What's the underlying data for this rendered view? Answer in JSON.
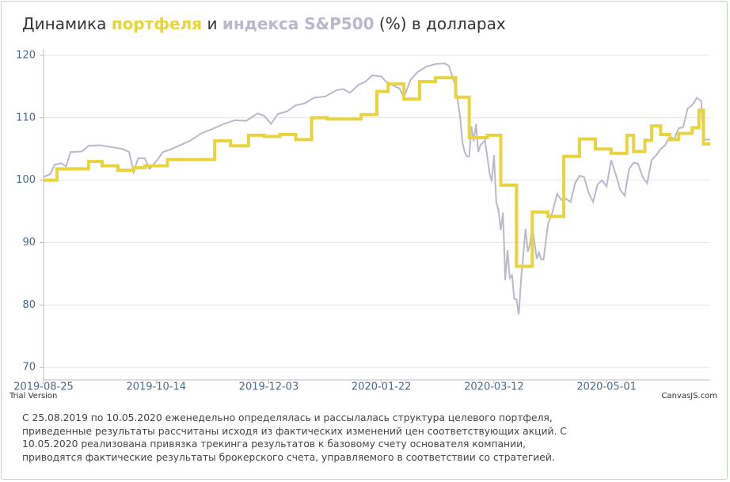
{
  "chart_data": {
    "type": "line",
    "title_start": "Динамика",
    "title_middle": "и",
    "title_end": "(%) в долларах",
    "watermark": "Trial Version",
    "credit": "CanvasJS.com",
    "xlim": [
      "2019-08-25",
      "2020-06-16"
    ],
    "xticks": [
      "2019-08-25",
      "2019-10-14",
      "2019-12-03",
      "2020-01-22",
      "2020-03-12",
      "2020-05-01"
    ],
    "ylim": [
      68,
      121
    ],
    "yticks": [
      70,
      80,
      90,
      100,
      110,
      120
    ],
    "grid": true,
    "series": [
      {
        "name": "индекса S&P500",
        "color": "#bab8ca",
        "step": false,
        "x": [
          "2019-08-25",
          "2019-08-28",
          "2019-08-30",
          "2019-09-02",
          "2019-09-04",
          "2019-09-06",
          "2019-09-11",
          "2019-09-14",
          "2019-09-19",
          "2019-09-24",
          "2019-09-29",
          "2019-10-02",
          "2019-10-04",
          "2019-10-06",
          "2019-10-09",
          "2019-10-11",
          "2019-10-14",
          "2019-10-17",
          "2019-10-21",
          "2019-10-24",
          "2019-10-29",
          "2019-11-03",
          "2019-11-08",
          "2019-11-13",
          "2019-11-18",
          "2019-11-23",
          "2019-11-28",
          "2019-12-01",
          "2019-12-04",
          "2019-12-07",
          "2019-12-11",
          "2019-12-15",
          "2019-12-19",
          "2019-12-23",
          "2019-12-28",
          "2020-01-02",
          "2020-01-05",
          "2020-01-08",
          "2020-01-12",
          "2020-01-15",
          "2020-01-18",
          "2020-01-22",
          "2020-01-24",
          "2020-01-27",
          "2020-01-30",
          "2020-02-01",
          "2020-02-04",
          "2020-02-07",
          "2020-02-11",
          "2020-02-15",
          "2020-02-19",
          "2020-02-21",
          "2020-02-24",
          "2020-02-26",
          "2020-02-27",
          "2020-02-28",
          "2020-02-29",
          "2020-03-01",
          "2020-03-02",
          "2020-03-03",
          "2020-03-04",
          "2020-03-05",
          "2020-03-06",
          "2020-03-08",
          "2020-03-10",
          "2020-03-11",
          "2020-03-12",
          "2020-03-13",
          "2020-03-14",
          "2020-03-15",
          "2020-03-16",
          "2020-03-17",
          "2020-03-18",
          "2020-03-19",
          "2020-03-20",
          "2020-03-21",
          "2020-03-22",
          "2020-03-23",
          "2020-03-24",
          "2020-03-25",
          "2020-03-26",
          "2020-03-27",
          "2020-03-28",
          "2020-03-29",
          "2020-03-30",
          "2020-03-31",
          "2020-04-01",
          "2020-04-02",
          "2020-04-03",
          "2020-04-05",
          "2020-04-07",
          "2020-04-09",
          "2020-04-11",
          "2020-04-13",
          "2020-04-15",
          "2020-04-17",
          "2020-04-19",
          "2020-04-21",
          "2020-04-23",
          "2020-04-25",
          "2020-04-27",
          "2020-04-29",
          "2020-05-01",
          "2020-05-03",
          "2020-05-05",
          "2020-05-07",
          "2020-05-09",
          "2020-05-11",
          "2020-05-13",
          "2020-05-15",
          "2020-05-17",
          "2020-05-19",
          "2020-05-21",
          "2020-05-23",
          "2020-05-25",
          "2020-05-27",
          "2020-05-29",
          "2020-05-31",
          "2020-06-02",
          "2020-06-04",
          "2020-06-06",
          "2020-06-08",
          "2020-06-10",
          "2020-06-12",
          "2020-06-13",
          "2020-06-16"
        ],
        "values": [
          100.5,
          101,
          102.5,
          102.7,
          102.2,
          104.5,
          104.6,
          105.5,
          105.6,
          105.3,
          105,
          104.5,
          101.3,
          103.5,
          103.5,
          101.8,
          103,
          104.5,
          105,
          105.5,
          106.3,
          107.5,
          108.2,
          109,
          109.6,
          109.5,
          110.7,
          110.3,
          109,
          110.6,
          111,
          112,
          112.3,
          113.2,
          113.4,
          114.4,
          114.6,
          114,
          115.3,
          115.8,
          116.8,
          116.6,
          115.8,
          115.2,
          114.7,
          113.3,
          116.1,
          117.3,
          118.2,
          118.6,
          118.7,
          118.3,
          115,
          110,
          106,
          104.5,
          103.8,
          103.8,
          108.6,
          106.2,
          109,
          104.5,
          105.6,
          106.4,
          101.2,
          99.8,
          104,
          96.5,
          95.2,
          92,
          94.8,
          84,
          88.8,
          84.3,
          84.8,
          81,
          80.9,
          78.5,
          84,
          88,
          92.2,
          88.5,
          89.8,
          92.5,
          90,
          87.4,
          88.4,
          87.3,
          87.3,
          93,
          94.9,
          97.8,
          96.8,
          97,
          96.5,
          99.5,
          100.7,
          100.5,
          98,
          96.5,
          99.3,
          100,
          99,
          103.2,
          101,
          98.5,
          97.5,
          101.8,
          102.8,
          102.6,
          100.5,
          99.5,
          103.2,
          104,
          105,
          105.6,
          107,
          106.6,
          108.3,
          108.5,
          111.5,
          112,
          113.2,
          112.7,
          106.5,
          106.5
        ]
      },
      {
        "name": "портфеля",
        "color": "#e8d43e",
        "step": true,
        "x": [
          "2019-08-25",
          "2019-08-31",
          "2019-09-14",
          "2019-09-20",
          "2019-09-27",
          "2019-10-04",
          "2019-10-09",
          "2019-10-19",
          "2019-11-09",
          "2019-11-16",
          "2019-11-24",
          "2019-12-01",
          "2019-12-08",
          "2019-12-15",
          "2019-12-22",
          "2019-12-29",
          "2020-01-13",
          "2020-01-20",
          "2020-01-25",
          "2020-02-01",
          "2020-02-08",
          "2020-02-15",
          "2020-02-24",
          "2020-03-01",
          "2020-03-09",
          "2020-03-15",
          "2020-03-22",
          "2020-03-29",
          "2020-04-05",
          "2020-04-12",
          "2020-04-19",
          "2020-04-26",
          "2020-05-03",
          "2020-05-10",
          "2020-05-13",
          "2020-05-18",
          "2020-05-21",
          "2020-05-25",
          "2020-05-29",
          "2020-06-02",
          "2020-06-08",
          "2020-06-11",
          "2020-06-13",
          "2020-06-16"
        ],
        "values": [
          100,
          101.8,
          103,
          102.3,
          101.6,
          102,
          102.3,
          103.3,
          106.3,
          105.5,
          107.2,
          107,
          107.3,
          106.5,
          110,
          109.8,
          110.5,
          114.2,
          115.4,
          113,
          115.8,
          116.4,
          113.3,
          106.8,
          107.2,
          99.2,
          86.2,
          94.9,
          94.2,
          103.8,
          106.6,
          105,
          104.3,
          107.2,
          104.6,
          106.4,
          108.7,
          107.3,
          106.5,
          107.5,
          108.4,
          111.2,
          105.8,
          105.8
        ]
      }
    ],
    "note": [
      "С 25.08.2019 по 10.05.2020 еженедельно определялась и рассылалась структура целевого портфеля,",
      "приведенные результаты рассчитаны исходя из фактических изменений цен соответствующих акций. С",
      "10.05.2020 реализована привязка трекинга результатов к базовому счету основателя компании,",
      "приводятся фактические результаты брокерского счета, управляемого в соответствии со стратегией."
    ]
  }
}
